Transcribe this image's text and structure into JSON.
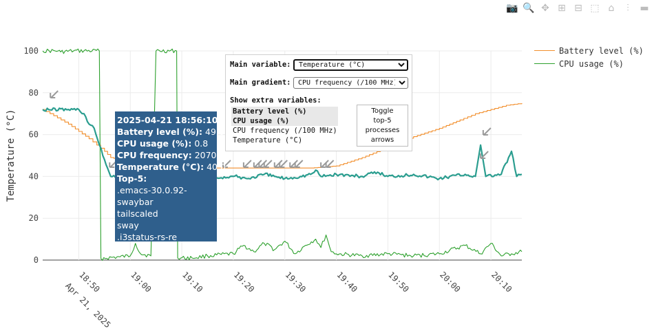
{
  "modebar": {
    "buttons": [
      "camera-icon",
      "zoom-icon",
      "pan-icon",
      "zoom-in-icon",
      "zoom-out-icon",
      "autoscale-icon",
      "home-icon",
      "spike-lines-icon",
      "hover-compare-icon"
    ]
  },
  "legend": {
    "items": [
      {
        "label": "Battery level (%)",
        "color": "#f28e2b"
      },
      {
        "label": "CPU usage (%)",
        "color": "#2ca02c"
      }
    ]
  },
  "controls": {
    "main_variable_label": "Main variable:",
    "main_variable_value": "Temperature (°C)",
    "main_gradient_label": "Main gradient:",
    "main_gradient_value": "CPU frequency (/100 MHz)",
    "extra_title": "Show extra variables:",
    "extra_options": [
      {
        "label": "Battery level (%)",
        "selected": true
      },
      {
        "label": "CPU usage (%)",
        "selected": true
      },
      {
        "label": "CPU frequency (/100 MHz)",
        "selected": false
      },
      {
        "label": "Temperature (°C)",
        "selected": false
      }
    ],
    "toggle_lines": [
      "Toggle",
      "top-5",
      "processes",
      "arrows"
    ]
  },
  "tooltip": {
    "timestamp": "2025-04-21 18:56:10",
    "rows": [
      {
        "k": "Battery level (%):",
        "v": "49.0"
      },
      {
        "k": "CPU usage (%):",
        "v": "0.8"
      },
      {
        "k": "CPU frequency:",
        "v": "2070.0"
      },
      {
        "k": "Temperature (°C):",
        "v": "40.0"
      }
    ],
    "top_title": "Top-5:",
    "processes": [
      ".emacs-30.0.92-",
      "swaybar",
      "tailscaled",
      "sway",
      ".i3status-rs-re"
    ]
  },
  "chart_data": {
    "type": "line",
    "ylabel": "Temperature (°C)",
    "xlabel": "",
    "ylim": [
      0,
      100
    ],
    "yticks": [
      0,
      20,
      40,
      60,
      80,
      100
    ],
    "xrange_minutes": [
      -7,
      86
    ],
    "xticks": [
      {
        "t": 0,
        "label": "18:50",
        "sub": "Apr 21, 2025"
      },
      {
        "t": 10,
        "label": "19:00"
      },
      {
        "t": 20,
        "label": "19:10"
      },
      {
        "t": 30,
        "label": "19:20"
      },
      {
        "t": 40,
        "label": "19:30"
      },
      {
        "t": 50,
        "label": "19:40"
      },
      {
        "t": 60,
        "label": "19:50"
      },
      {
        "t": 70,
        "label": "20:00"
      },
      {
        "t": 80,
        "label": "20:10"
      }
    ],
    "grid": true,
    "legend_position": "top-right",
    "series": [
      {
        "name": "Battery level (%)",
        "color": "#f28e2b",
        "points": [
          [
            -7,
            72
          ],
          [
            -2,
            65
          ],
          [
            2,
            58
          ],
          [
            5,
            52
          ],
          [
            6.2,
            49
          ],
          [
            8,
            48
          ],
          [
            11,
            46
          ],
          [
            13,
            45
          ],
          [
            15,
            45
          ],
          [
            25,
            44
          ],
          [
            30,
            44
          ],
          [
            38,
            44
          ],
          [
            45,
            44
          ],
          [
            50,
            45
          ],
          [
            55,
            49
          ],
          [
            60,
            54
          ],
          [
            65,
            59
          ],
          [
            70,
            63
          ],
          [
            74,
            67
          ],
          [
            77,
            70
          ],
          [
            80,
            72
          ],
          [
            83,
            74
          ],
          [
            86,
            75
          ]
        ]
      },
      {
        "name": "CPU usage (%)",
        "color": "#2ca02c",
        "points": [
          [
            -7,
            100
          ],
          [
            -4,
            100
          ],
          [
            -3.5,
            99.5
          ],
          [
            -1,
            100
          ],
          [
            4,
            100
          ],
          [
            4.3,
            0.8
          ],
          [
            8,
            1.5
          ],
          [
            10,
            2
          ],
          [
            11,
            8
          ],
          [
            12,
            3
          ],
          [
            14,
            2
          ],
          [
            15,
            100
          ],
          [
            19,
            100
          ],
          [
            19.2,
            1
          ],
          [
            22,
            1
          ],
          [
            25,
            2
          ],
          [
            30,
            3
          ],
          [
            32,
            7
          ],
          [
            34,
            4
          ],
          [
            36,
            8
          ],
          [
            38,
            5
          ],
          [
            40,
            9
          ],
          [
            42,
            3
          ],
          [
            44,
            7
          ],
          [
            46,
            10
          ],
          [
            47,
            6
          ],
          [
            48,
            12
          ],
          [
            49,
            4
          ],
          [
            50,
            3
          ],
          [
            55,
            2
          ],
          [
            60,
            3
          ],
          [
            65,
            2
          ],
          [
            70,
            3
          ],
          [
            75,
            7
          ],
          [
            78,
            3
          ],
          [
            80,
            8
          ],
          [
            82,
            2
          ],
          [
            84,
            3
          ],
          [
            86,
            4
          ]
        ]
      },
      {
        "name": "Temperature (°C)",
        "color": "#2a9d8f",
        "points": [
          [
            -7,
            72
          ],
          [
            -2,
            72
          ],
          [
            0,
            72
          ],
          [
            1,
            70
          ],
          [
            2,
            65
          ],
          [
            3,
            63
          ],
          [
            4,
            55
          ],
          [
            5,
            48
          ],
          [
            6.2,
            40
          ],
          [
            8,
            39
          ],
          [
            10,
            39
          ],
          [
            12,
            40
          ],
          [
            14,
            39
          ],
          [
            16,
            40
          ],
          [
            20,
            39
          ],
          [
            25,
            39
          ],
          [
            30,
            40
          ],
          [
            33,
            39
          ],
          [
            36,
            41
          ],
          [
            38,
            40
          ],
          [
            40,
            39
          ],
          [
            43,
            40
          ],
          [
            45,
            41
          ],
          [
            46,
            43
          ],
          [
            47,
            40
          ],
          [
            50,
            41
          ],
          [
            55,
            40
          ],
          [
            58,
            42
          ],
          [
            60,
            40
          ],
          [
            65,
            41
          ],
          [
            70,
            39
          ],
          [
            72,
            40
          ],
          [
            75,
            41
          ],
          [
            77,
            40
          ],
          [
            78,
            55
          ],
          [
            79,
            40
          ],
          [
            82,
            41
          ],
          [
            84,
            52
          ],
          [
            85,
            40
          ],
          [
            86,
            41
          ]
        ]
      }
    ],
    "arrow_minutes": [
      -5.5,
      6,
      28,
      32,
      34,
      35,
      36,
      38,
      39,
      41,
      42,
      47,
      48,
      78,
      78.5
    ]
  }
}
